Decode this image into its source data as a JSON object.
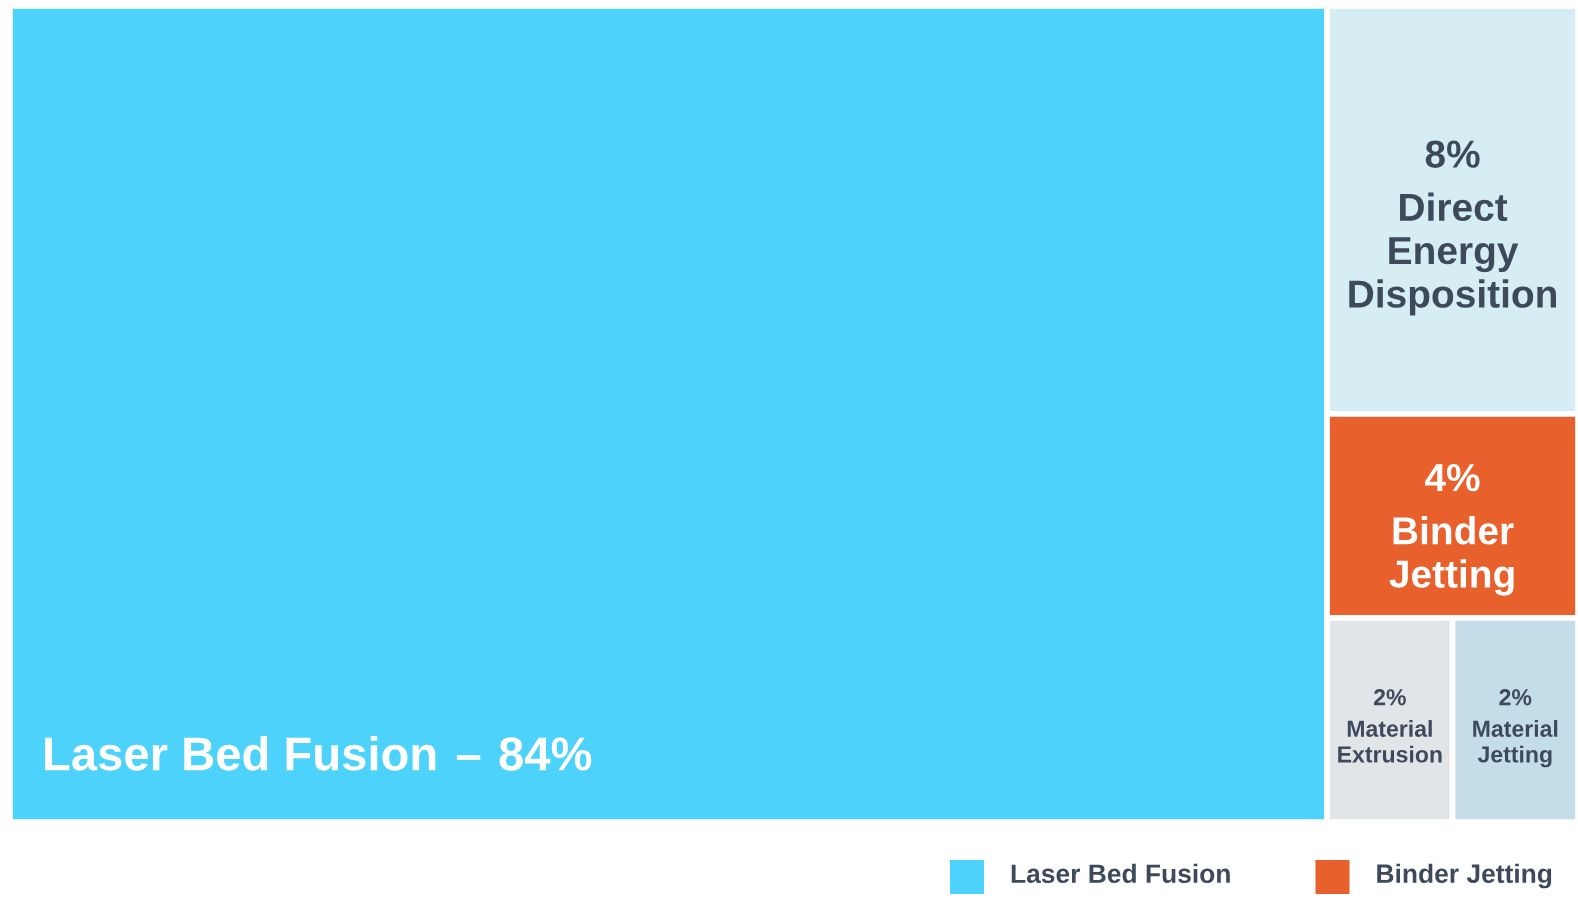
{
  "chart_data": {
    "type": "other",
    "categories": [
      "Laser Bed Fusion",
      "Direct Energy Disposition",
      "Binder Jetting",
      "Material Extrusion",
      "Material Jetting"
    ],
    "values": [
      84,
      8,
      4,
      2,
      2
    ],
    "colors": [
      "#4dd3fb",
      "#d6eef3",
      "#e8602c",
      "#e2e5e7",
      "#c5dde9"
    ],
    "value_labels": [
      "84%",
      "8%",
      "4%",
      "2%",
      "2%"
    ],
    "series": [
      {
        "name": "Laser Bed Fusion",
        "color": "#4dd3fb",
        "values": [
          null,
          null,
          null,
          null,
          null
        ]
      },
      {
        "name": "Binder Jetting",
        "color": "#e8602c",
        "values": [
          null,
          null,
          null,
          null,
          null
        ]
      }
    ],
    "annotations": [
      "–"
    ],
    "legend": "bottom"
  }
}
